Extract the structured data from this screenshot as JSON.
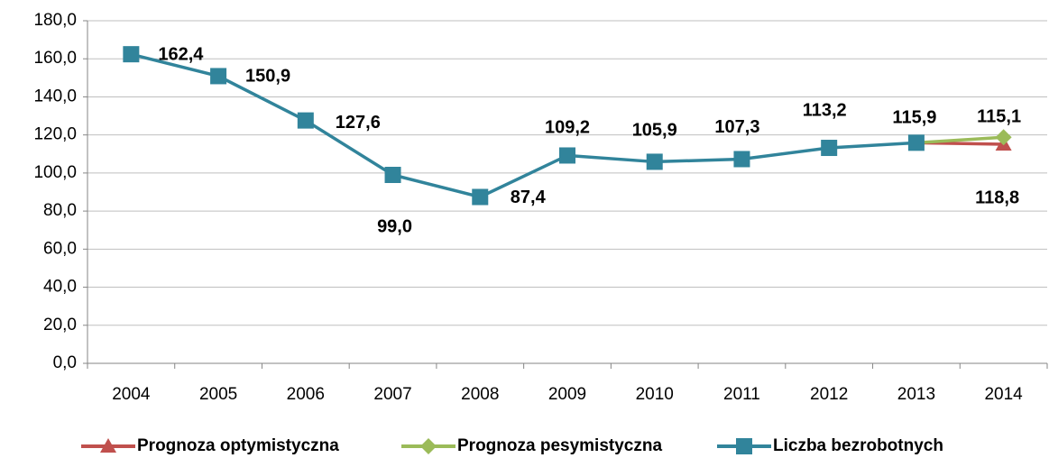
{
  "chart_data": {
    "type": "line",
    "categories": [
      "2004",
      "2005",
      "2006",
      "2007",
      "2008",
      "2009",
      "2010",
      "2011",
      "2012",
      "2013",
      "2014"
    ],
    "series": [
      {
        "name": "Prognoza optymistyczna",
        "color": "#c0504d",
        "marker": "triangle",
        "values": [
          null,
          null,
          null,
          null,
          null,
          null,
          null,
          null,
          null,
          115.9,
          115.1
        ],
        "value_labels": [
          null,
          null,
          null,
          null,
          null,
          null,
          null,
          null,
          null,
          null,
          "115,1"
        ]
      },
      {
        "name": "Prognoza pesymistyczna",
        "color": "#9bbb59",
        "marker": "diamond",
        "values": [
          null,
          null,
          null,
          null,
          null,
          null,
          null,
          null,
          null,
          115.9,
          118.8
        ],
        "value_labels": [
          null,
          null,
          null,
          null,
          null,
          null,
          null,
          null,
          null,
          null,
          "118,8"
        ]
      },
      {
        "name": "Liczba bezrobotnych",
        "color": "#31849b",
        "marker": "square",
        "values": [
          162.4,
          150.9,
          127.6,
          99.0,
          87.4,
          109.2,
          105.9,
          107.3,
          113.2,
          115.9,
          null
        ],
        "value_labels": [
          "162,4",
          "150,9",
          "127,6",
          "99,0",
          "87,4",
          "109,2",
          "105,9",
          "107,3",
          "113,2",
          "115,9",
          null
        ]
      }
    ],
    "ylim": [
      0,
      180
    ],
    "yticks": [
      {
        "value": 0,
        "label": "0,0"
      },
      {
        "value": 20,
        "label": "20,0"
      },
      {
        "value": 40,
        "label": "40,0"
      },
      {
        "value": 60,
        "label": "60,0"
      },
      {
        "value": 80,
        "label": "80,0"
      },
      {
        "value": 100,
        "label": "100,0"
      },
      {
        "value": 120,
        "label": "120,0"
      },
      {
        "value": 140,
        "label": "140,0"
      },
      {
        "value": 160,
        "label": "160,0"
      },
      {
        "value": 180,
        "label": "180,0"
      }
    ],
    "grid": true,
    "legend": "bottom"
  }
}
